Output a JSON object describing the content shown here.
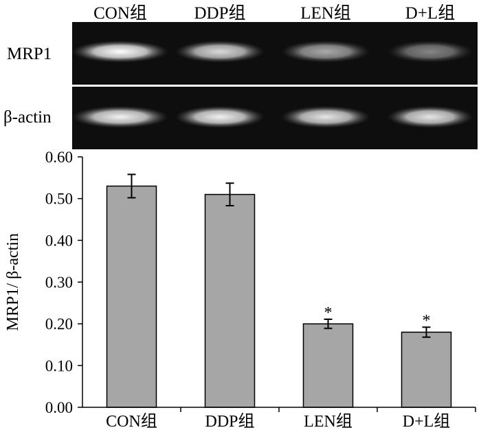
{
  "blot": {
    "group_labels": [
      "CON组",
      "DDP组",
      "LEN组",
      "D+L组"
    ],
    "rows": [
      {
        "label": "MRP1",
        "band_intensity": [
          1.0,
          0.85,
          0.65,
          0.5
        ]
      },
      {
        "label": "β-actin",
        "band_intensity": [
          0.95,
          0.95,
          0.9,
          0.9
        ]
      }
    ],
    "colors": {
      "background": "#0e0e0e",
      "band": "#ffffff",
      "divider": "#ffffff"
    }
  },
  "chart_data": {
    "type": "bar",
    "title": "",
    "xlabel": "",
    "ylabel": "MRP1/ β-actin",
    "categories": [
      "CON组",
      "DDP组",
      "LEN组",
      "D+L组"
    ],
    "values": [
      0.53,
      0.51,
      0.2,
      0.18
    ],
    "errors": [
      0.028,
      0.027,
      0.011,
      0.012
    ],
    "significance": [
      "",
      "",
      "*",
      "*"
    ],
    "ylim": [
      0,
      0.6
    ],
    "yticks": [
      0,
      0.1,
      0.2,
      0.3,
      0.4,
      0.5,
      0.6
    ],
    "ytick_labels": [
      "0.00",
      "0.10",
      "0.20",
      "0.30",
      "0.40",
      "0.50",
      "0.60"
    ],
    "grid": false,
    "legend": "none",
    "colors": {
      "bar_fill": "#a6a6a6",
      "bar_stroke": "#000000",
      "axis": "#000000"
    }
  }
}
